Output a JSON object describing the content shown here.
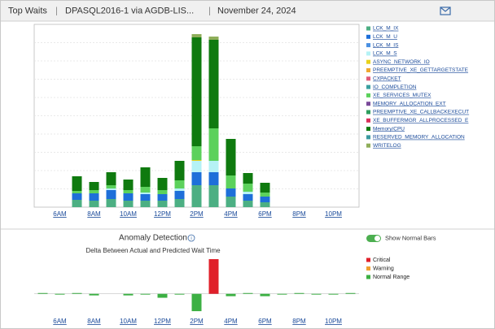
{
  "header": {
    "title": "Top Waits",
    "instance": "DPASQL2016-1 via AGDB-LIS...",
    "date": "November 24, 2024"
  },
  "controls": {
    "toggle_label": "Show Normal Bars"
  },
  "chart_data": [
    {
      "type": "bar",
      "stacked": true,
      "grid": true,
      "ylim": [
        0,
        225
      ],
      "categories": [
        null,
        "6AM",
        null,
        "8AM",
        null,
        "10AM",
        null,
        "12PM",
        null,
        "2PM",
        null,
        "4PM",
        null,
        "6PM",
        null,
        "8PM",
        null,
        "10PM",
        null
      ],
      "series": [
        {
          "name": "LCK_M_IX",
          "color": "#4caf83",
          "values": [
            null,
            null,
            9,
            8,
            10,
            8,
            8,
            8,
            10,
            27,
            27,
            13,
            8,
            6,
            null,
            null,
            null,
            null,
            null
          ]
        },
        {
          "name": "LCK_M_U",
          "color": "#1e6fd9",
          "values": [
            null,
            null,
            8,
            9,
            11,
            9,
            8,
            8,
            10,
            16,
            16,
            10,
            8,
            7,
            null,
            null,
            null,
            null,
            null
          ]
        },
        {
          "name": "LCK_M_IS",
          "color": "#4a90e2",
          "values": [
            null,
            null,
            null,
            null,
            null,
            null,
            null,
            null,
            null,
            null,
            null,
            null,
            null,
            null,
            null,
            null,
            null,
            null,
            null
          ]
        },
        {
          "name": "LCK_M_S",
          "color": "#b5f2f5",
          "values": [
            null,
            null,
            0,
            0,
            2,
            0,
            2,
            0,
            3,
            14,
            14,
            0,
            3,
            0,
            null,
            null,
            null,
            null,
            null
          ]
        },
        {
          "name": "ASYNC_NETWORK_IO",
          "color": "#e8d21c",
          "values": [
            null,
            null,
            null,
            null,
            null,
            null,
            null,
            null,
            null,
            1,
            null,
            null,
            null,
            null,
            null,
            null,
            null,
            null,
            null
          ]
        },
        {
          "name": "PREEMPTIVE_XE_GETTARGETSTATE",
          "color": "#f0a830",
          "values": [
            null,
            null,
            null,
            null,
            null,
            null,
            null,
            null,
            null,
            null,
            null,
            null,
            null,
            null,
            null,
            null,
            null,
            null,
            null
          ]
        },
        {
          "name": "CXPACKET",
          "color": "#e05a7a",
          "values": [
            null,
            null,
            null,
            null,
            null,
            null,
            null,
            null,
            null,
            null,
            null,
            null,
            null,
            null,
            null,
            null,
            null,
            null,
            null
          ]
        },
        {
          "name": "IO_COMPLETION",
          "color": "#3aa0a0",
          "values": [
            null,
            null,
            null,
            null,
            null,
            null,
            null,
            null,
            null,
            null,
            null,
            null,
            null,
            null,
            null,
            null,
            null,
            null,
            null
          ]
        },
        {
          "name": "XE_SERVICES_MUTEX",
          "color": "#5cd15c",
          "values": [
            null,
            null,
            3,
            4,
            4,
            4,
            7,
            5,
            10,
            17,
            40,
            16,
            10,
            5,
            null,
            null,
            null,
            null,
            null
          ]
        },
        {
          "name": "MEMORY_ALLOCATION_EXT",
          "color": "#7a4a9a",
          "values": [
            null,
            null,
            null,
            null,
            null,
            null,
            null,
            null,
            null,
            null,
            null,
            null,
            null,
            null,
            null,
            null,
            null,
            null,
            null
          ]
        },
        {
          "name": "PREEMPTIVE_XE_CALLBACKEXECUT",
          "color": "#2e9e5e",
          "values": [
            null,
            null,
            null,
            null,
            null,
            null,
            null,
            null,
            null,
            null,
            null,
            null,
            null,
            null,
            null,
            null,
            null,
            null,
            null
          ]
        },
        {
          "name": "XE_BUFFERMGR_ALLPROCESSED_E",
          "color": "#d9305a",
          "values": [
            null,
            null,
            null,
            null,
            null,
            null,
            null,
            null,
            null,
            null,
            null,
            null,
            null,
            null,
            null,
            null,
            null,
            null,
            null
          ]
        },
        {
          "name": "Memory/CPU",
          "color": "#0f7a0f",
          "values": [
            null,
            null,
            18,
            10,
            16,
            13,
            24,
            15,
            24,
            134,
            109,
            45,
            13,
            12,
            null,
            null,
            null,
            null,
            null
          ]
        },
        {
          "name": "RESERVED_MEMORY_ALLOCATION",
          "color": "#3a9aa0",
          "values": [
            null,
            null,
            null,
            null,
            null,
            null,
            null,
            null,
            null,
            null,
            null,
            null,
            null,
            null,
            null,
            null,
            null,
            null,
            null
          ]
        },
        {
          "name": "WRITELOG",
          "color": "#8fae5a",
          "values": [
            null,
            null,
            null,
            null,
            null,
            null,
            null,
            null,
            null,
            4,
            4,
            null,
            null,
            null,
            null,
            null,
            null,
            null,
            null
          ]
        }
      ]
    },
    {
      "type": "bar",
      "stacked": true,
      "title": "Anomaly Detection",
      "subtitle": "Delta Between Actual and Predicted Wait Time",
      "ylim": [
        -24,
        45
      ],
      "categories": [
        null,
        "6AM",
        null,
        "8AM",
        null,
        "10AM",
        null,
        "12PM",
        null,
        "2PM",
        null,
        "4PM",
        null,
        "6PM",
        null,
        "8PM",
        null,
        "10PM",
        null
      ],
      "series": [
        {
          "name": "Critical",
          "color": "#e0202a",
          "values": [
            null,
            null,
            null,
            null,
            null,
            null,
            null,
            null,
            null,
            null,
            44,
            null,
            null,
            null,
            null,
            null,
            null,
            null,
            null
          ]
        },
        {
          "name": "Warning",
          "color": "#f0a030",
          "values": [
            null,
            null,
            null,
            null,
            null,
            null,
            null,
            null,
            null,
            null,
            null,
            null,
            null,
            null,
            null,
            null,
            null,
            null,
            null
          ]
        },
        {
          "name": "Normal Range",
          "color": "#3cb043",
          "values": [
            1,
            -1,
            1,
            -2,
            0,
            -2,
            -1,
            -5,
            -1,
            -22,
            null,
            -3,
            1,
            -3,
            -1,
            1,
            -1,
            -1,
            1
          ]
        }
      ]
    }
  ]
}
